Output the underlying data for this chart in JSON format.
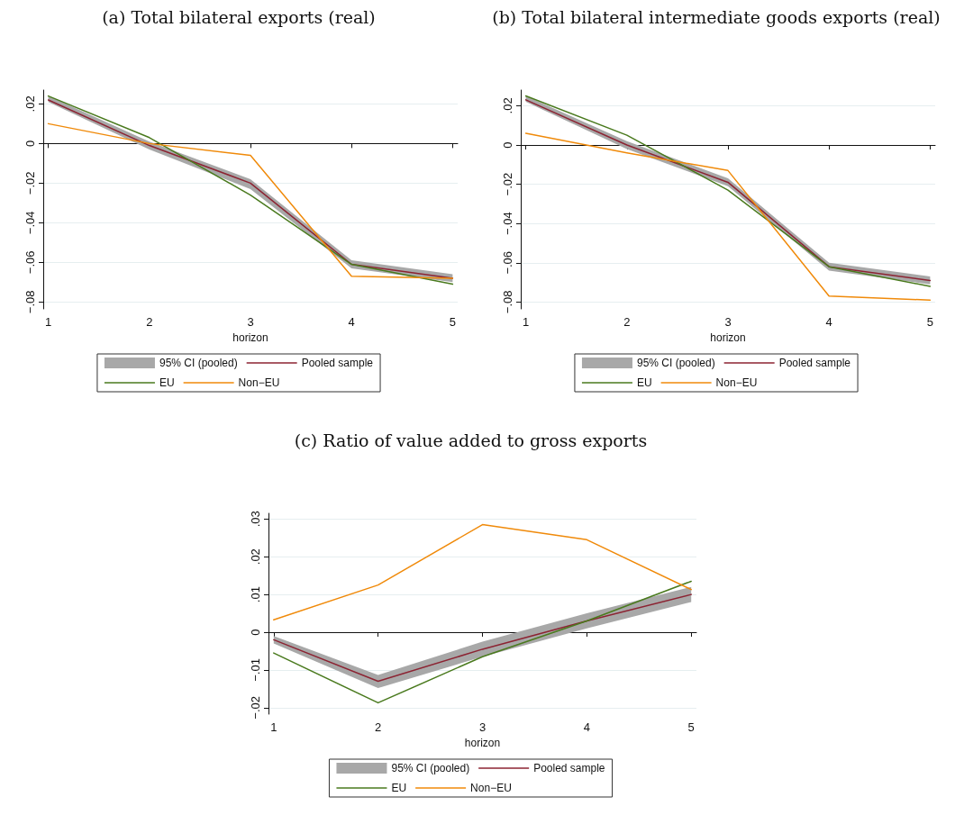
{
  "chart_data": [
    {
      "type": "line",
      "title": "(a) Total bilateral exports (real)",
      "xlabel": "horizon",
      "x": [
        1,
        2,
        3,
        4,
        5
      ],
      "xlim": [
        0.95,
        5.05
      ],
      "xticks": [
        1,
        2,
        3,
        4,
        5
      ],
      "ylim": [
        -0.0835,
        0.027
      ],
      "yticks": [
        {
          "value": -0.08,
          "label": "−.08"
        },
        {
          "value": -0.06,
          "label": "−.06"
        },
        {
          "value": -0.04,
          "label": "−.04"
        },
        {
          "value": -0.02,
          "label": "−.02"
        },
        {
          "value": 0,
          "label": "0"
        },
        {
          "value": 0.02,
          "label": ".02"
        }
      ],
      "grid": "y",
      "legend": "bottom",
      "marker": "none",
      "line_style": "solid",
      "series": [
        {
          "name": "95% CI (pooled)",
          "type": "area",
          "color": "#a8a8a8",
          "values": [
            null,
            null,
            null,
            null,
            null
          ],
          "lower": [
            0.021,
            -0.003,
            -0.023,
            -0.063,
            -0.07
          ],
          "upper": [
            0.024,
            0.001,
            -0.018,
            -0.059,
            -0.066
          ]
        },
        {
          "name": "Pooled sample",
          "type": "line",
          "color": "#8c2332",
          "values": [
            0.022,
            -0.001,
            -0.02,
            -0.061,
            -0.068
          ]
        },
        {
          "name": "EU",
          "type": "line",
          "color": "#4a7a1e",
          "values": [
            0.024,
            0.003,
            -0.026,
            -0.061,
            -0.071
          ]
        },
        {
          "name": "Non−EU",
          "type": "line",
          "color": "#f08a0a",
          "values": [
            0.01,
            0.0,
            -0.006,
            -0.067,
            -0.068
          ]
        }
      ]
    },
    {
      "type": "line",
      "title": "(b) Total bilateral intermediate goods exports (real)",
      "xlabel": "horizon",
      "x": [
        1,
        2,
        3,
        4,
        5
      ],
      "xlim": [
        0.95,
        5.05
      ],
      "xticks": [
        1,
        2,
        3,
        4,
        5
      ],
      "ylim": [
        -0.0835,
        0.028
      ],
      "yticks": [
        {
          "value": -0.08,
          "label": "−.08"
        },
        {
          "value": -0.06,
          "label": "−.06"
        },
        {
          "value": -0.04,
          "label": "−.04"
        },
        {
          "value": -0.02,
          "label": "−.02"
        },
        {
          "value": 0,
          "label": "0"
        },
        {
          "value": 0.02,
          "label": ".02"
        }
      ],
      "grid": "y",
      "legend": "bottom",
      "marker": "none",
      "line_style": "solid",
      "series": [
        {
          "name": "95% CI (pooled)",
          "type": "area",
          "color": "#a8a8a8",
          "values": [
            null,
            null,
            null,
            null,
            null
          ],
          "lower": [
            0.022,
            -0.002,
            -0.021,
            -0.064,
            -0.071
          ],
          "upper": [
            0.025,
            0.002,
            -0.017,
            -0.06,
            -0.067
          ]
        },
        {
          "name": "Pooled sample",
          "type": "line",
          "color": "#8c2332",
          "values": [
            0.023,
            0.0,
            -0.019,
            -0.062,
            -0.069
          ]
        },
        {
          "name": "EU",
          "type": "line",
          "color": "#4a7a1e",
          "values": [
            0.025,
            0.005,
            -0.023,
            -0.062,
            -0.072
          ]
        },
        {
          "name": "Non−EU",
          "type": "line",
          "color": "#f08a0a",
          "values": [
            0.006,
            -0.004,
            -0.013,
            -0.077,
            -0.079
          ]
        }
      ]
    },
    {
      "type": "line",
      "title": "(c) Ratio of value added to gross exports",
      "xlabel": "horizon",
      "x": [
        1,
        2,
        3,
        4,
        5
      ],
      "xlim": [
        0.95,
        5.05
      ],
      "xticks": [
        1,
        2,
        3,
        4,
        5
      ],
      "ylim": [
        -0.0217,
        0.0315
      ],
      "yticks": [
        {
          "value": -0.02,
          "label": "−.02"
        },
        {
          "value": -0.01,
          "label": "−.01"
        },
        {
          "value": 0,
          "label": "0"
        },
        {
          "value": 0.01,
          "label": ".01"
        },
        {
          "value": 0.02,
          "label": ".02"
        },
        {
          "value": 0.03,
          "label": ".03"
        }
      ],
      "grid": "y",
      "legend": "bottom",
      "marker": "none",
      "line_style": "solid",
      "series": [
        {
          "name": "95% CI (pooled)",
          "type": "area",
          "color": "#a8a8a8",
          "values": [
            null,
            null,
            null,
            null,
            null
          ],
          "lower": [
            -0.003,
            -0.0148,
            -0.0065,
            0.001,
            0.008
          ],
          "upper": [
            -0.001,
            -0.0113,
            -0.0025,
            0.005,
            0.012
          ]
        },
        {
          "name": "Pooled sample",
          "type": "line",
          "color": "#8c2332",
          "values": [
            -0.002,
            -0.013,
            -0.0045,
            0.003,
            0.01
          ]
        },
        {
          "name": "EU",
          "type": "line",
          "color": "#4a7a1e",
          "values": [
            -0.0055,
            -0.0187,
            -0.0065,
            0.003,
            0.0135
          ]
        },
        {
          "name": "Non−EU",
          "type": "line",
          "color": "#f08a0a",
          "values": [
            0.0033,
            0.0125,
            0.0285,
            0.0245,
            0.0113
          ]
        }
      ]
    }
  ]
}
